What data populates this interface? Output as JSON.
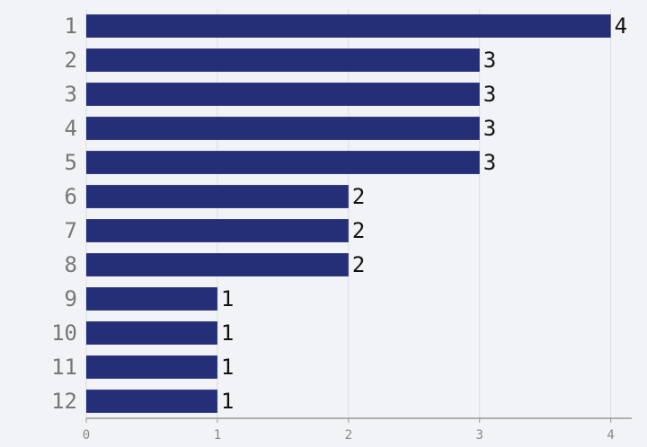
{
  "chart_data": {
    "type": "bar",
    "orientation": "horizontal",
    "categories": [
      "1",
      "2",
      "3",
      "4",
      "5",
      "6",
      "7",
      "8",
      "9",
      "10",
      "11",
      "12"
    ],
    "values": [
      4,
      3,
      3,
      3,
      3,
      2,
      2,
      2,
      1,
      1,
      1,
      1
    ],
    "color": "#252f78",
    "xlim": [
      0,
      4.16
    ],
    "xticks": [
      0,
      1,
      2,
      3,
      4
    ],
    "grid": true
  }
}
